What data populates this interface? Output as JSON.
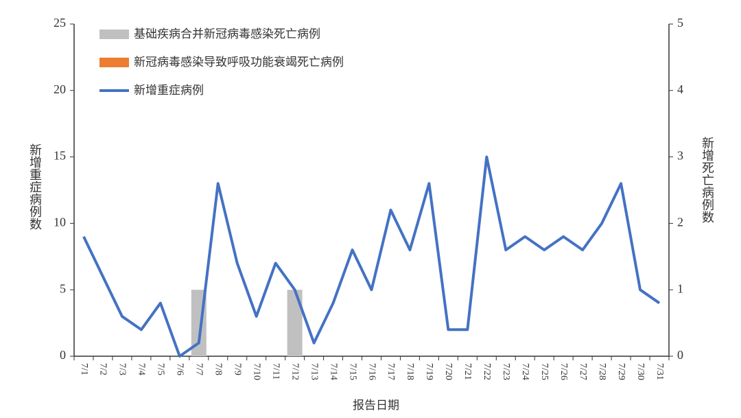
{
  "chart_data": {
    "type": "bar-line",
    "x_label": "报告日期",
    "y_label": "新增重症病例数",
    "y2_label": "新增死亡病例数",
    "categories": [
      "7/1",
      "7/2",
      "7/3",
      "7/4",
      "7/5",
      "7/6",
      "7/7",
      "7/8",
      "7/9",
      "7/10",
      "7/11",
      "7/12",
      "7/13",
      "7/14",
      "7/15",
      "7/16",
      "7/17",
      "7/18",
      "7/19",
      "7/20",
      "7/21",
      "7/22",
      "7/23",
      "7/24",
      "7/25",
      "7/26",
      "7/27",
      "7/28",
      "7/29",
      "7/30",
      "7/31"
    ],
    "series": [
      {
        "name": "基础疾病合并新冠病毒感染死亡病例",
        "type": "bar",
        "axis": "y2",
        "color": "#c0c0c0",
        "values": [
          0,
          0,
          0,
          0,
          0,
          0,
          1,
          0,
          0,
          0,
          0,
          1,
          0,
          0,
          0,
          0,
          0,
          0,
          0,
          0,
          0,
          0,
          0,
          0,
          0,
          0,
          0,
          0,
          0,
          0,
          0
        ]
      },
      {
        "name": "新冠病毒感染导致呼吸功能衰竭死亡病例",
        "type": "bar",
        "axis": "y2",
        "color": "#ed7d31",
        "values": [
          0,
          0,
          0,
          0,
          0,
          0,
          0,
          0,
          0,
          0,
          0,
          0,
          0,
          0,
          0,
          0,
          0,
          0,
          0,
          0,
          0,
          0,
          0,
          0,
          0,
          0,
          0,
          0,
          0,
          0,
          0
        ]
      },
      {
        "name": "新增重症病例",
        "type": "line",
        "color": "#4472c4",
        "values": [
          9,
          6,
          3,
          2,
          4,
          0,
          1,
          13,
          7,
          3,
          7,
          5,
          1,
          4,
          8,
          5,
          11,
          8,
          13,
          2,
          2,
          15,
          8,
          9,
          8,
          9,
          8,
          10,
          13,
          5,
          4
        ]
      }
    ],
    "ylim": [
      0,
      25
    ],
    "yticks": [
      0,
      5,
      10,
      15,
      20,
      25
    ],
    "y2lim": [
      0,
      5
    ],
    "y2ticks": [
      0,
      1,
      2,
      3,
      4,
      5
    ],
    "legend": "upper-left"
  }
}
